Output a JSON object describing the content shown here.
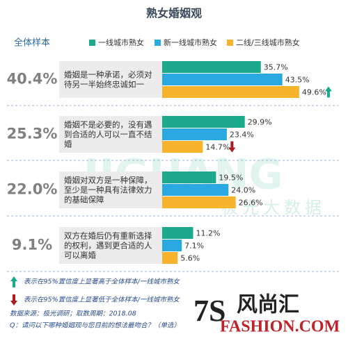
{
  "chart_data": {
    "type": "bar",
    "orientation": "horizontal",
    "title": "熟女婚姻观",
    "categories": [
      "婚姻是一种承诺，必须对待另一半始终忠诚如一",
      "婚姻不是必要的，没有遇到合适的人可以一直不结婚",
      "婚姻对双方是一种保障，至少是一种具有法律效力的基础保障",
      "双方在婚后仍有重新选择的权利，遇到更合适的人可以离婚"
    ],
    "overall": {
      "title": "全体样本",
      "values": [
        40.4,
        25.3,
        22.0,
        9.1
      ],
      "value_labels": [
        "40.4%",
        "25.3%",
        "22.0%",
        "9.1%"
      ]
    },
    "series": [
      {
        "name": "一线城市熟女",
        "color": "#1aa98a",
        "values": [
          35.7,
          29.9,
          19.5,
          11.2
        ],
        "value_labels": [
          "35.7%",
          "29.9%",
          "19.5%",
          "11.2%"
        ]
      },
      {
        "name": "新一线城市熟女",
        "color": "#29a9e0",
        "values": [
          43.5,
          23.4,
          24.0,
          7.1
        ],
        "value_labels": [
          "43.5%",
          "23.4%",
          "24.0%",
          "7.1%"
        ]
      },
      {
        "name": "二线/三线城市熟女",
        "color": "#f7b32b",
        "values": [
          49.6,
          14.7,
          26.6,
          5.6
        ],
        "value_labels": [
          "49.6%",
          "14.7%",
          "26.6%",
          "5.6%"
        ],
        "significance": [
          "up",
          "down",
          null,
          null
        ]
      }
    ],
    "notes": {
      "up": "表示在95%置信度上显著高于全体样本/一线城市熟女",
      "down": "表示在95%置信度上显著低于全体样本/一线城市熟女",
      "source": "数据来源：极光调研；取数周期：2018.08",
      "question": "Q：请问以下哪种婚姻观与您目前的想法最吻合？（单选）"
    },
    "watermarks": [
      "JIGUANG",
      "极光大数据",
      "7S",
      "风尚汇",
      "FASHION.COM"
    ]
  }
}
